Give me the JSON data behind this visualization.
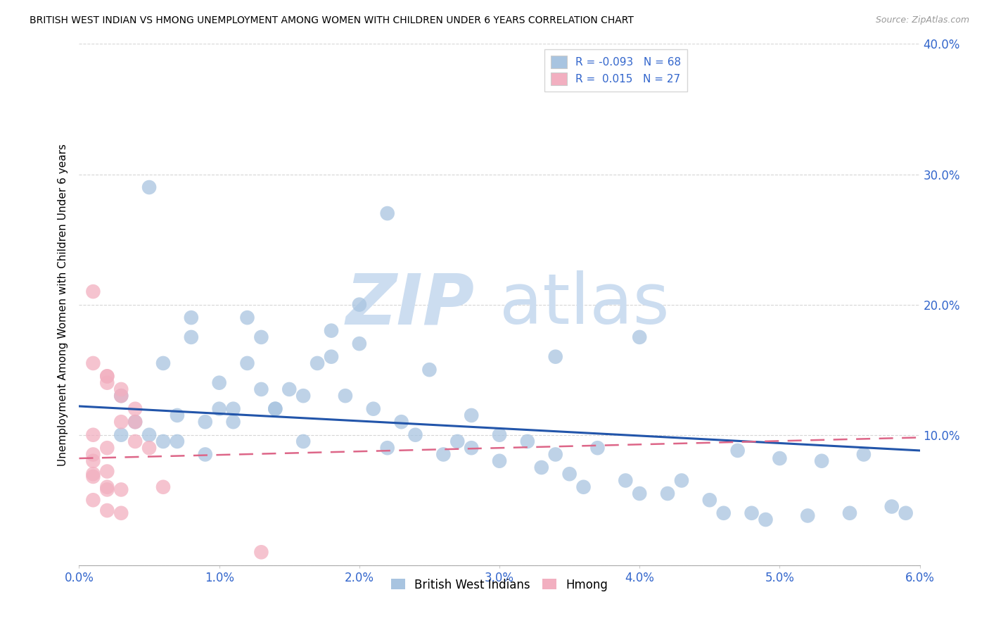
{
  "title": "BRITISH WEST INDIAN VS HMONG UNEMPLOYMENT AMONG WOMEN WITH CHILDREN UNDER 6 YEARS CORRELATION CHART",
  "source": "Source: ZipAtlas.com",
  "ylabel": "Unemployment Among Women with Children Under 6 years",
  "xlim": [
    0.0,
    0.06
  ],
  "ylim": [
    0.0,
    0.4
  ],
  "xticks": [
    0.0,
    0.01,
    0.02,
    0.03,
    0.04,
    0.05,
    0.06
  ],
  "yticks": [
    0.0,
    0.1,
    0.2,
    0.3,
    0.4
  ],
  "xtick_labels": [
    "0.0%",
    "1.0%",
    "2.0%",
    "3.0%",
    "4.0%",
    "5.0%",
    "6.0%"
  ],
  "ytick_labels_right": [
    "",
    "10.0%",
    "20.0%",
    "30.0%",
    "40.0%"
  ],
  "legend_label1": "R = -0.093   N = 68",
  "legend_label2": "R =  0.015   N = 27",
  "blue_color": "#a8c4e0",
  "pink_color": "#f2afc0",
  "blue_line_color": "#2255aa",
  "pink_line_color": "#dd6688",
  "blue_line_y0": 0.122,
  "blue_line_y1": 0.088,
  "pink_line_y0": 0.082,
  "pink_line_y1": 0.098,
  "blue_scatter_x": [
    0.004,
    0.006,
    0.008,
    0.01,
    0.012,
    0.014,
    0.016,
    0.018,
    0.02,
    0.022,
    0.003,
    0.005,
    0.007,
    0.009,
    0.011,
    0.013,
    0.015,
    0.017,
    0.019,
    0.021,
    0.023,
    0.025,
    0.027,
    0.03,
    0.032,
    0.034,
    0.037,
    0.04,
    0.043,
    0.046,
    0.049,
    0.052,
    0.055,
    0.058,
    0.006,
    0.008,
    0.01,
    0.012,
    0.014,
    0.016,
    0.018,
    0.02,
    0.022,
    0.024,
    0.026,
    0.028,
    0.03,
    0.033,
    0.036,
    0.039,
    0.042,
    0.045,
    0.048,
    0.003,
    0.005,
    0.007,
    0.009,
    0.011,
    0.013,
    0.034,
    0.047,
    0.05,
    0.053,
    0.056,
    0.059,
    0.04,
    0.035,
    0.028
  ],
  "blue_scatter_y": [
    0.11,
    0.095,
    0.19,
    0.12,
    0.19,
    0.12,
    0.13,
    0.18,
    0.2,
    0.27,
    0.1,
    0.29,
    0.115,
    0.11,
    0.12,
    0.175,
    0.135,
    0.155,
    0.13,
    0.12,
    0.11,
    0.15,
    0.095,
    0.1,
    0.095,
    0.085,
    0.09,
    0.055,
    0.065,
    0.04,
    0.035,
    0.038,
    0.04,
    0.045,
    0.155,
    0.175,
    0.14,
    0.155,
    0.12,
    0.095,
    0.16,
    0.17,
    0.09,
    0.1,
    0.085,
    0.09,
    0.08,
    0.075,
    0.06,
    0.065,
    0.055,
    0.05,
    0.04,
    0.13,
    0.1,
    0.095,
    0.085,
    0.11,
    0.135,
    0.16,
    0.088,
    0.082,
    0.08,
    0.085,
    0.04,
    0.175,
    0.07,
    0.115
  ],
  "pink_scatter_x": [
    0.002,
    0.003,
    0.004,
    0.005,
    0.006,
    0.001,
    0.002,
    0.003,
    0.004,
    0.001,
    0.002,
    0.003,
    0.004,
    0.001,
    0.002,
    0.001,
    0.002,
    0.003,
    0.001,
    0.002,
    0.001,
    0.002,
    0.003,
    0.001,
    0.002,
    0.001,
    0.013
  ],
  "pink_scatter_y": [
    0.14,
    0.13,
    0.11,
    0.09,
    0.06,
    0.21,
    0.145,
    0.135,
    0.12,
    0.155,
    0.145,
    0.11,
    0.095,
    0.1,
    0.09,
    0.07,
    0.06,
    0.058,
    0.08,
    0.072,
    0.05,
    0.042,
    0.04,
    0.068,
    0.058,
    0.085,
    0.01
  ]
}
